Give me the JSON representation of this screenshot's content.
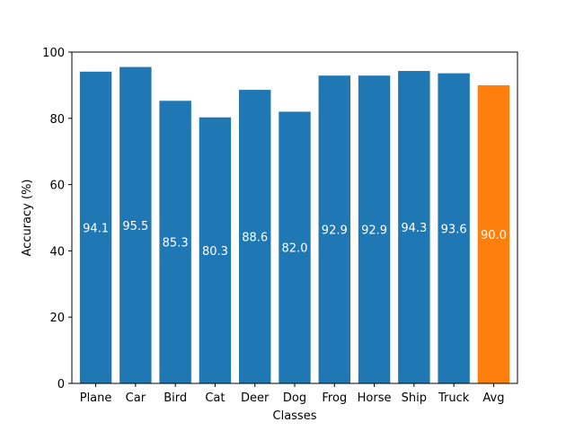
{
  "chart_data": {
    "type": "bar",
    "title": "",
    "xlabel": "Classes",
    "ylabel": "Accuracy (%)",
    "ylim": [
      0,
      100
    ],
    "yticks": [
      0,
      20,
      40,
      60,
      80,
      100
    ],
    "grid": false,
    "categories": [
      "Plane",
      "Car",
      "Bird",
      "Cat",
      "Deer",
      "Dog",
      "Frog",
      "Horse",
      "Ship",
      "Truck",
      "Avg"
    ],
    "values": [
      94.1,
      95.5,
      85.3,
      80.3,
      88.6,
      82.0,
      92.9,
      92.9,
      94.3,
      93.6,
      90.0
    ],
    "value_labels": [
      "94.1",
      "95.5",
      "85.3",
      "80.3",
      "88.6",
      "82.0",
      "92.9",
      "92.9",
      "94.3",
      "93.6",
      "90.0"
    ],
    "colors": {
      "default": "#1f77b4",
      "highlight": "#ff7f0e",
      "highlight_category": "Avg"
    }
  }
}
